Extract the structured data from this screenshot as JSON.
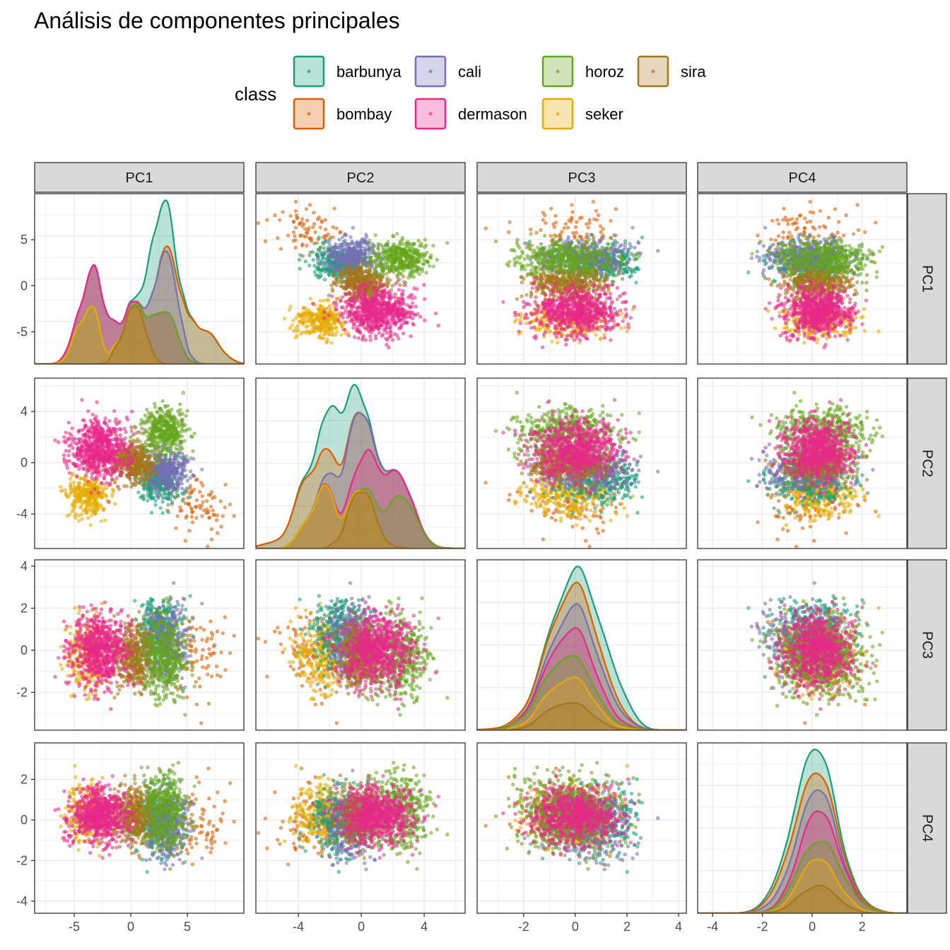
{
  "chart_data": {
    "type": "scatter",
    "title": "Análisis de componentes principales",
    "legend": {
      "title": "class",
      "placement": "top",
      "entries": [
        {
          "name": "barbunya",
          "color": "#1B9E77"
        },
        {
          "name": "bombay",
          "color": "#D95F02"
        },
        {
          "name": "cali",
          "color": "#7570B3"
        },
        {
          "name": "dermason",
          "color": "#E7298A"
        },
        {
          "name": "horoz",
          "color": "#66A61E"
        },
        {
          "name": "seker",
          "color": "#E6AB02"
        },
        {
          "name": "sira",
          "color": "#A6761D"
        }
      ]
    },
    "variables": [
      "PC1",
      "PC2",
      "PC3",
      "PC4"
    ],
    "ranges": {
      "PC1": [
        -8.5,
        10.0
      ],
      "PC2": [
        -6.7,
        6.6
      ],
      "PC3": [
        -3.8,
        4.3
      ],
      "PC4": [
        -4.6,
        3.8
      ]
    },
    "ticks": {
      "PC1": [
        -5,
        0,
        5
      ],
      "PC2": [
        -4,
        0,
        4
      ],
      "PC3": [
        -2,
        0,
        2,
        4
      ],
      "PC4": [
        -4,
        -2,
        0,
        2
      ]
    },
    "diagonal": "stacked density per class",
    "off_diagonal": "scatter of points colored by class",
    "class_centers": {
      "barbunya": {
        "PC1": 2.5,
        "PC2": -1.5,
        "PC3": 1.0,
        "PC4": 0.0,
        "n": 300
      },
      "bombay": {
        "PC1": 6.0,
        "PC2": -3.5,
        "PC3": 0.0,
        "PC4": -0.2,
        "n": 80
      },
      "cali": {
        "PC1": 3.2,
        "PC2": -0.6,
        "PC3": 0.4,
        "PC4": -0.3,
        "n": 350
      },
      "dermason": {
        "PC1": -2.8,
        "PC2": 1.0,
        "PC3": 0.0,
        "PC4": 0.2,
        "n": 700
      },
      "horoz": {
        "PC1": 3.0,
        "PC2": 2.5,
        "PC3": -0.3,
        "PC4": 0.5,
        "n": 400
      },
      "seker": {
        "PC1": -3.8,
        "PC2": -2.5,
        "PC3": -0.3,
        "PC4": 0.3,
        "n": 300
      },
      "sira": {
        "PC1": 0.2,
        "PC2": 0.0,
        "PC3": -0.3,
        "PC4": 0.2,
        "n": 450
      }
    },
    "grid": true,
    "theme": "bw"
  }
}
